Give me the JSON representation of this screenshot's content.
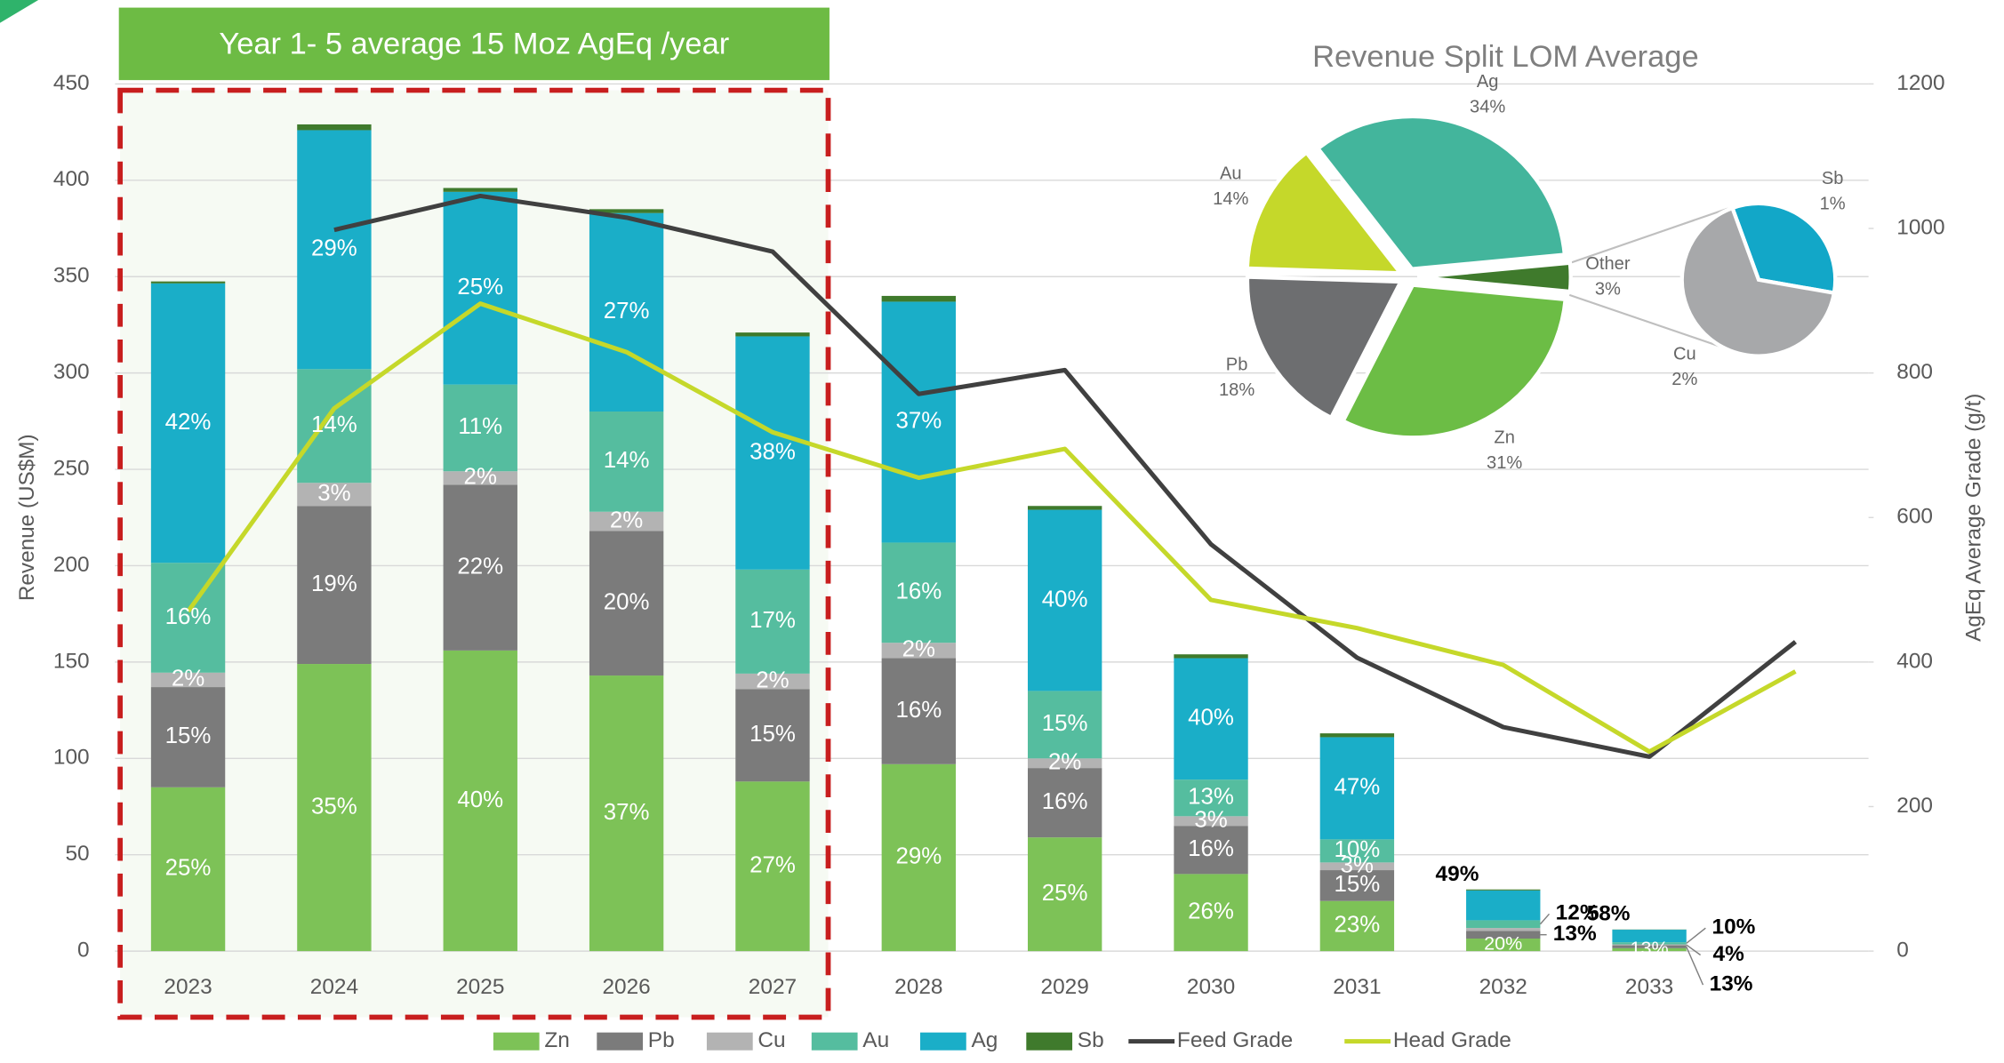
{
  "chart_data": [
    {
      "type": "bar",
      "stacked": true,
      "banner": "Year 1- 5 average 15 Moz AgEq /year",
      "ylabel": "Revenue (US$M)",
      "y2label": "AgEq Average Grade (g/t)",
      "categories": [
        "2023",
        "2024",
        "2025",
        "2026",
        "2027",
        "2028",
        "2029",
        "2030",
        "2031",
        "2032",
        "2033",
        null
      ],
      "ylim": [
        0,
        450
      ],
      "yticks": [
        0,
        50,
        100,
        150,
        200,
        250,
        300,
        350,
        400,
        450
      ],
      "y2lim": [
        0,
        1200
      ],
      "y2ticks": [
        0,
        200,
        400,
        600,
        800,
        1000,
        1200
      ],
      "grid": true,
      "series": [
        {
          "name": "Zn",
          "color": "#7dc257",
          "values": [
            85,
            149,
            156,
            143,
            88,
            97,
            59,
            40,
            26,
            6.5,
            1.5,
            null
          ],
          "percent_labels": [
            "25%",
            "35%",
            "40%",
            "37%",
            "27%",
            "29%",
            "25%",
            "26%",
            "23%",
            "20%",
            "13%",
            null
          ]
        },
        {
          "name": "Pb",
          "color": "#7b7b7b",
          "values": [
            52,
            82,
            86,
            75,
            48,
            55,
            36,
            25,
            16,
            4,
            1.5,
            null
          ],
          "percent_labels": [
            "15%",
            "19%",
            "22%",
            "20%",
            "15%",
            "16%",
            "16%",
            "16%",
            "15%",
            "13%",
            "13%",
            null
          ]
        },
        {
          "name": "Cu",
          "color": "#b3b3b3",
          "values": [
            7.5,
            12,
            7,
            10,
            8,
            8,
            5,
            5,
            4,
            1.5,
            0.5,
            null
          ],
          "percent_labels": [
            "2%",
            "3%",
            "2%",
            "2%",
            "2%",
            "2%",
            "2%",
            "3%",
            "3%",
            null,
            "4%",
            null
          ]
        },
        {
          "name": "Au",
          "color": "#55bd9f",
          "values": [
            57,
            59,
            45,
            52,
            54,
            52,
            35,
            19,
            12,
            4,
            1.1,
            null
          ],
          "percent_labels": [
            "16%",
            "14%",
            "11%",
            "14%",
            "17%",
            "16%",
            "15%",
            "13%",
            "10%",
            "12%",
            "10%",
            null
          ]
        },
        {
          "name": "Ag",
          "color": "#1aaec8",
          "values": [
            145,
            124,
            100,
            103,
            121,
            125,
            94,
            63,
            53,
            15.5,
            6.5,
            null
          ],
          "percent_labels": [
            "42%",
            "29%",
            "25%",
            "27%",
            "38%",
            "37%",
            "40%",
            "40%",
            "47%",
            "49%",
            "58%",
            null
          ]
        },
        {
          "name": "Sb",
          "color": "#3f7a2c",
          "values": [
            1,
            3,
            2,
            2,
            2,
            3,
            2,
            2,
            2,
            0.5,
            0.1,
            null
          ]
        },
        {
          "name": "Feed Grade",
          "type": "line",
          "axis": "y2",
          "color": "#404040",
          "values": [
            null,
            998,
            1045,
            1015,
            968,
            771,
            804,
            563,
            406,
            310,
            269,
            428
          ]
        },
        {
          "name": "Head Grade",
          "type": "line",
          "axis": "y2",
          "color": "#c5d82a",
          "values": [
            470,
            751,
            896,
            829,
            718,
            655,
            695,
            486,
            447,
            396,
            276,
            387
          ]
        }
      ]
    },
    {
      "type": "pie",
      "title": "Revenue Split LOM Average",
      "slices": [
        {
          "name": "Other",
          "value": 3,
          "label": "3%",
          "color": "#3f7a2c"
        },
        {
          "name": "Zn",
          "value": 31,
          "label": "31%",
          "color": "#6cbd45"
        },
        {
          "name": "Pb",
          "value": 18,
          "label": "18%",
          "color": "#6d6e70"
        },
        {
          "name": "Au",
          "value": 14,
          "label": "14%",
          "color": "#c5d82a"
        },
        {
          "name": "Ag",
          "value": 34,
          "label": "34%",
          "color": "#43b59c"
        }
      ],
      "sub_slices": [
        {
          "name": "Sb",
          "value": 1,
          "label": "1%",
          "color": "#12a7c8"
        },
        {
          "name": "Cu",
          "value": 2,
          "label": "2%",
          "color": "#a7a8aa"
        }
      ]
    }
  ]
}
